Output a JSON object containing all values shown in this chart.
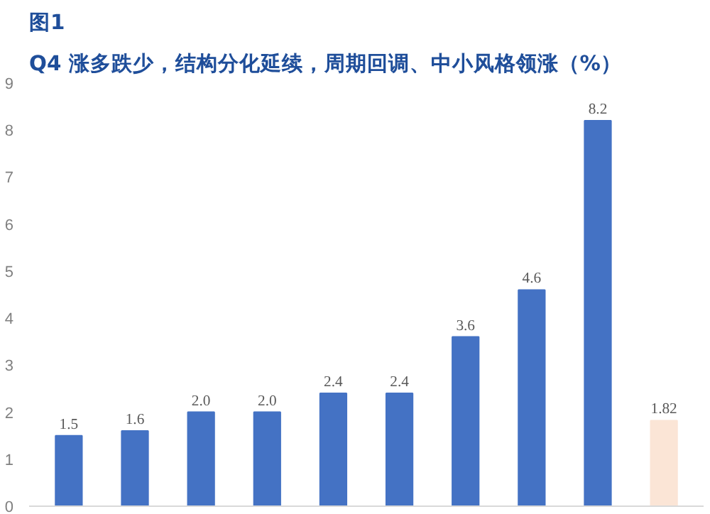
{
  "chart_data": {
    "type": "bar",
    "title": "图1",
    "subtitle": "Q4 涨多跌少，结构分化延续，周期回调、中小风格领涨（%）",
    "categories": [
      null,
      null,
      null,
      null,
      null,
      null,
      null,
      null,
      null,
      null
    ],
    "values": [
      1.5,
      1.6,
      2.0,
      2.0,
      2.4,
      2.4,
      3.6,
      4.6,
      8.2,
      1.82
    ],
    "colors": [
      "#4472c4",
      "#4472c4",
      "#4472c4",
      "#4472c4",
      "#4472c4",
      "#4472c4",
      "#4472c4",
      "#4472c4",
      "#4472c4",
      "#fbe5d6"
    ],
    "value_labels": [
      "1.5",
      "1.6",
      "2.0",
      "2.0",
      "2.4",
      "2.4",
      "3.6",
      "4.6",
      "8.2",
      "1.82"
    ],
    "ylim": [
      0,
      9
    ],
    "yticks": [
      0,
      1,
      2,
      3,
      4,
      5,
      6,
      7,
      8,
      9
    ],
    "grid": false
  }
}
